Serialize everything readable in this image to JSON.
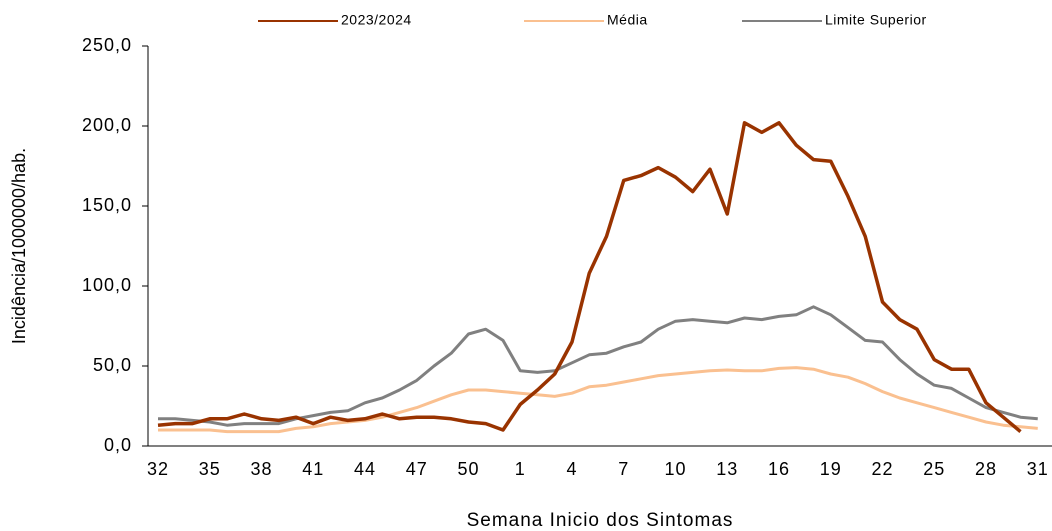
{
  "chart_data": {
    "type": "line",
    "xlabel": "Semana Inicio dos Sintomas",
    "ylabel": "Incidência/1000000/hab.",
    "categories": [
      "32",
      null,
      null,
      "35",
      null,
      null,
      "38",
      null,
      null,
      "41",
      null,
      null,
      "44",
      null,
      null,
      "47",
      null,
      null,
      "50",
      null,
      null,
      "1",
      null,
      null,
      "4",
      null,
      null,
      "7",
      null,
      null,
      "10",
      null,
      null,
      "13",
      null,
      null,
      "16",
      null,
      null,
      "19",
      null,
      null,
      "22",
      null,
      null,
      "25",
      null,
      null,
      "28",
      null,
      null,
      "31"
    ],
    "ylim": [
      0,
      250
    ],
    "yticks": [
      {
        "value": 0,
        "label": "0,0"
      },
      {
        "value": 50,
        "label": "50,0"
      },
      {
        "value": 100,
        "label": "100,0"
      },
      {
        "value": 150,
        "label": "150,0"
      },
      {
        "value": 200,
        "label": "200,0"
      },
      {
        "value": 250,
        "label": "250,0"
      }
    ],
    "series": [
      {
        "name": "2023/2024",
        "color": "#993300",
        "values": [
          13,
          14,
          14,
          17,
          17,
          20,
          17,
          16,
          18,
          14,
          18,
          16,
          17,
          20,
          17,
          18,
          18,
          17,
          15,
          14,
          10,
          26,
          35,
          45,
          65,
          108,
          131,
          166,
          169,
          174,
          168,
          159,
          173,
          145,
          202,
          196,
          202,
          188,
          179,
          178,
          156,
          131,
          90,
          79,
          73,
          54,
          48,
          48,
          27,
          18,
          9,
          null
        ]
      },
      {
        "name": "Média",
        "color": "#fac090",
        "values": [
          10,
          10,
          10,
          10,
          9,
          9,
          9,
          9,
          11,
          12,
          14,
          15,
          16,
          18,
          21,
          24,
          28,
          32,
          35,
          35,
          34,
          33,
          32,
          31,
          33,
          37,
          38,
          40,
          42,
          44,
          45,
          46,
          47,
          47.5,
          47,
          47,
          48.5,
          49,
          48,
          45,
          43,
          39,
          34,
          30,
          27,
          24,
          21,
          18,
          15,
          13,
          12,
          11
        ]
      },
      {
        "name": "Limite Superior",
        "color": "#808080",
        "values": [
          17,
          17,
          16,
          15,
          13,
          14,
          14,
          14,
          17,
          19,
          21,
          22,
          27,
          30,
          35,
          41,
          50,
          58,
          70,
          73,
          66,
          47,
          46,
          47,
          52,
          57,
          58,
          62,
          65,
          73,
          78,
          79,
          78,
          77,
          80,
          79,
          81,
          82,
          87,
          82,
          74,
          66,
          65,
          54,
          45,
          38,
          36,
          30,
          24,
          21,
          18,
          17
        ]
      }
    ]
  }
}
